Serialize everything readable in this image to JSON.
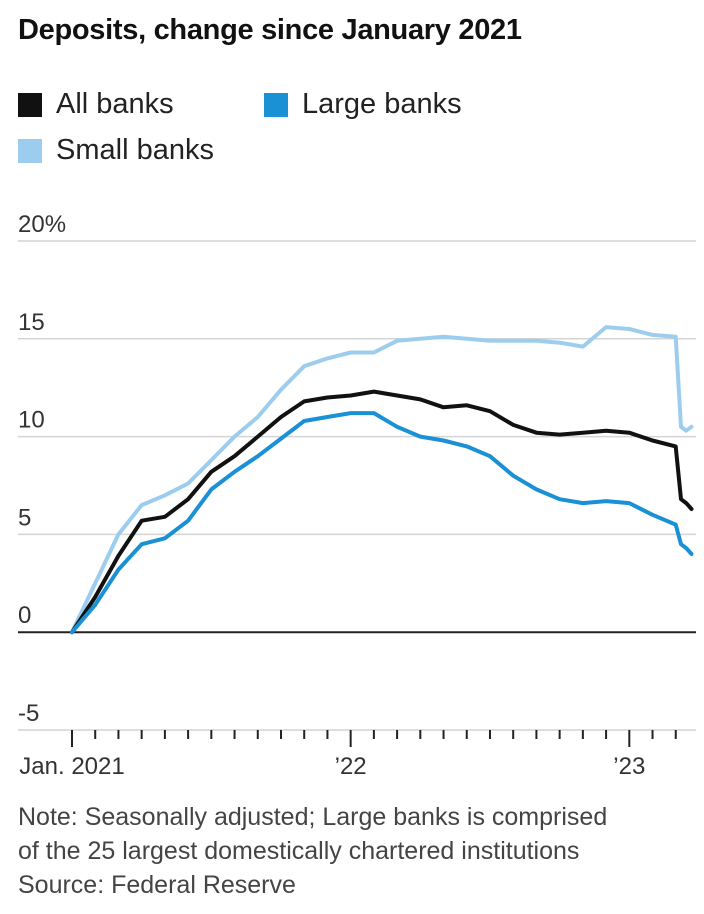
{
  "title": "Deposits, change since January 2021",
  "legend": [
    {
      "label": "All banks",
      "color": "#111111"
    },
    {
      "label": "Large banks",
      "color": "#1a90d5"
    },
    {
      "label": "Small banks",
      "color": "#9dcdee"
    }
  ],
  "notes": {
    "line1": "Note: Seasonally adjusted; Large banks is comprised",
    "line2": "of the 25 largest domestically chartered institutions",
    "line3": "Source: Federal Reserve"
  },
  "chart_data": {
    "type": "line",
    "title": "Deposits, change since January 2021",
    "ylim": [
      -5,
      20
    ],
    "y_ticks": [
      {
        "value": 20,
        "label": "20%"
      },
      {
        "value": 15,
        "label": "15"
      },
      {
        "value": 10,
        "label": "10"
      },
      {
        "value": 5,
        "label": "5"
      },
      {
        "value": 0,
        "label": "0"
      },
      {
        "value": -5,
        "label": "-5"
      }
    ],
    "x_axis": {
      "start": "2021-01",
      "end": "2023-03",
      "unit": "month",
      "minor_ticks": "monthly"
    },
    "x_ticks": [
      {
        "date": "2021-01",
        "label": "Jan. 2021"
      },
      {
        "date": "2022-01",
        "label": "’22"
      },
      {
        "date": "2023-01",
        "label": "’23"
      }
    ],
    "x": [
      "2021-01",
      "2021-02",
      "2021-03",
      "2021-04",
      "2021-05",
      "2021-06",
      "2021-07",
      "2021-08",
      "2021-09",
      "2021-10",
      "2021-11",
      "2021-12",
      "2022-01",
      "2022-02",
      "2022-03",
      "2022-04",
      "2022-05",
      "2022-06",
      "2022-07",
      "2022-08",
      "2022-09",
      "2022-10",
      "2022-11",
      "2022-12",
      "2023-01",
      "2023-02",
      "2023-03-01",
      "2023-03-08",
      "2023-03-15",
      "2023-03-22"
    ],
    "series": [
      {
        "name": "Small banks",
        "color": "#9dcdee",
        "values": [
          0,
          2.5,
          5.0,
          6.5,
          7.0,
          7.6,
          8.8,
          10.0,
          11.0,
          12.4,
          13.6,
          14.0,
          14.3,
          14.3,
          14.9,
          15.0,
          15.1,
          15.0,
          14.9,
          14.9,
          14.9,
          14.8,
          14.6,
          15.6,
          15.5,
          15.2,
          15.1,
          10.5,
          10.3,
          10.5
        ]
      },
      {
        "name": "All banks",
        "color": "#111111",
        "values": [
          0,
          1.8,
          3.9,
          5.7,
          5.9,
          6.8,
          8.2,
          9.0,
          10.0,
          11.0,
          11.8,
          12.0,
          12.1,
          12.3,
          12.1,
          11.9,
          11.5,
          11.6,
          11.3,
          10.6,
          10.2,
          10.1,
          10.2,
          10.3,
          10.2,
          9.8,
          9.5,
          6.8,
          6.6,
          6.3
        ]
      },
      {
        "name": "Large banks",
        "color": "#1a90d5",
        "values": [
          0,
          1.4,
          3.2,
          4.5,
          4.8,
          5.7,
          7.3,
          8.2,
          9.0,
          9.9,
          10.8,
          11.0,
          11.2,
          11.2,
          10.5,
          10.0,
          9.8,
          9.5,
          9.0,
          8.0,
          7.3,
          6.8,
          6.6,
          6.7,
          6.6,
          6.0,
          5.5,
          4.5,
          4.3,
          4.0
        ]
      }
    ],
    "grid": true,
    "legend_position": "top-left"
  }
}
